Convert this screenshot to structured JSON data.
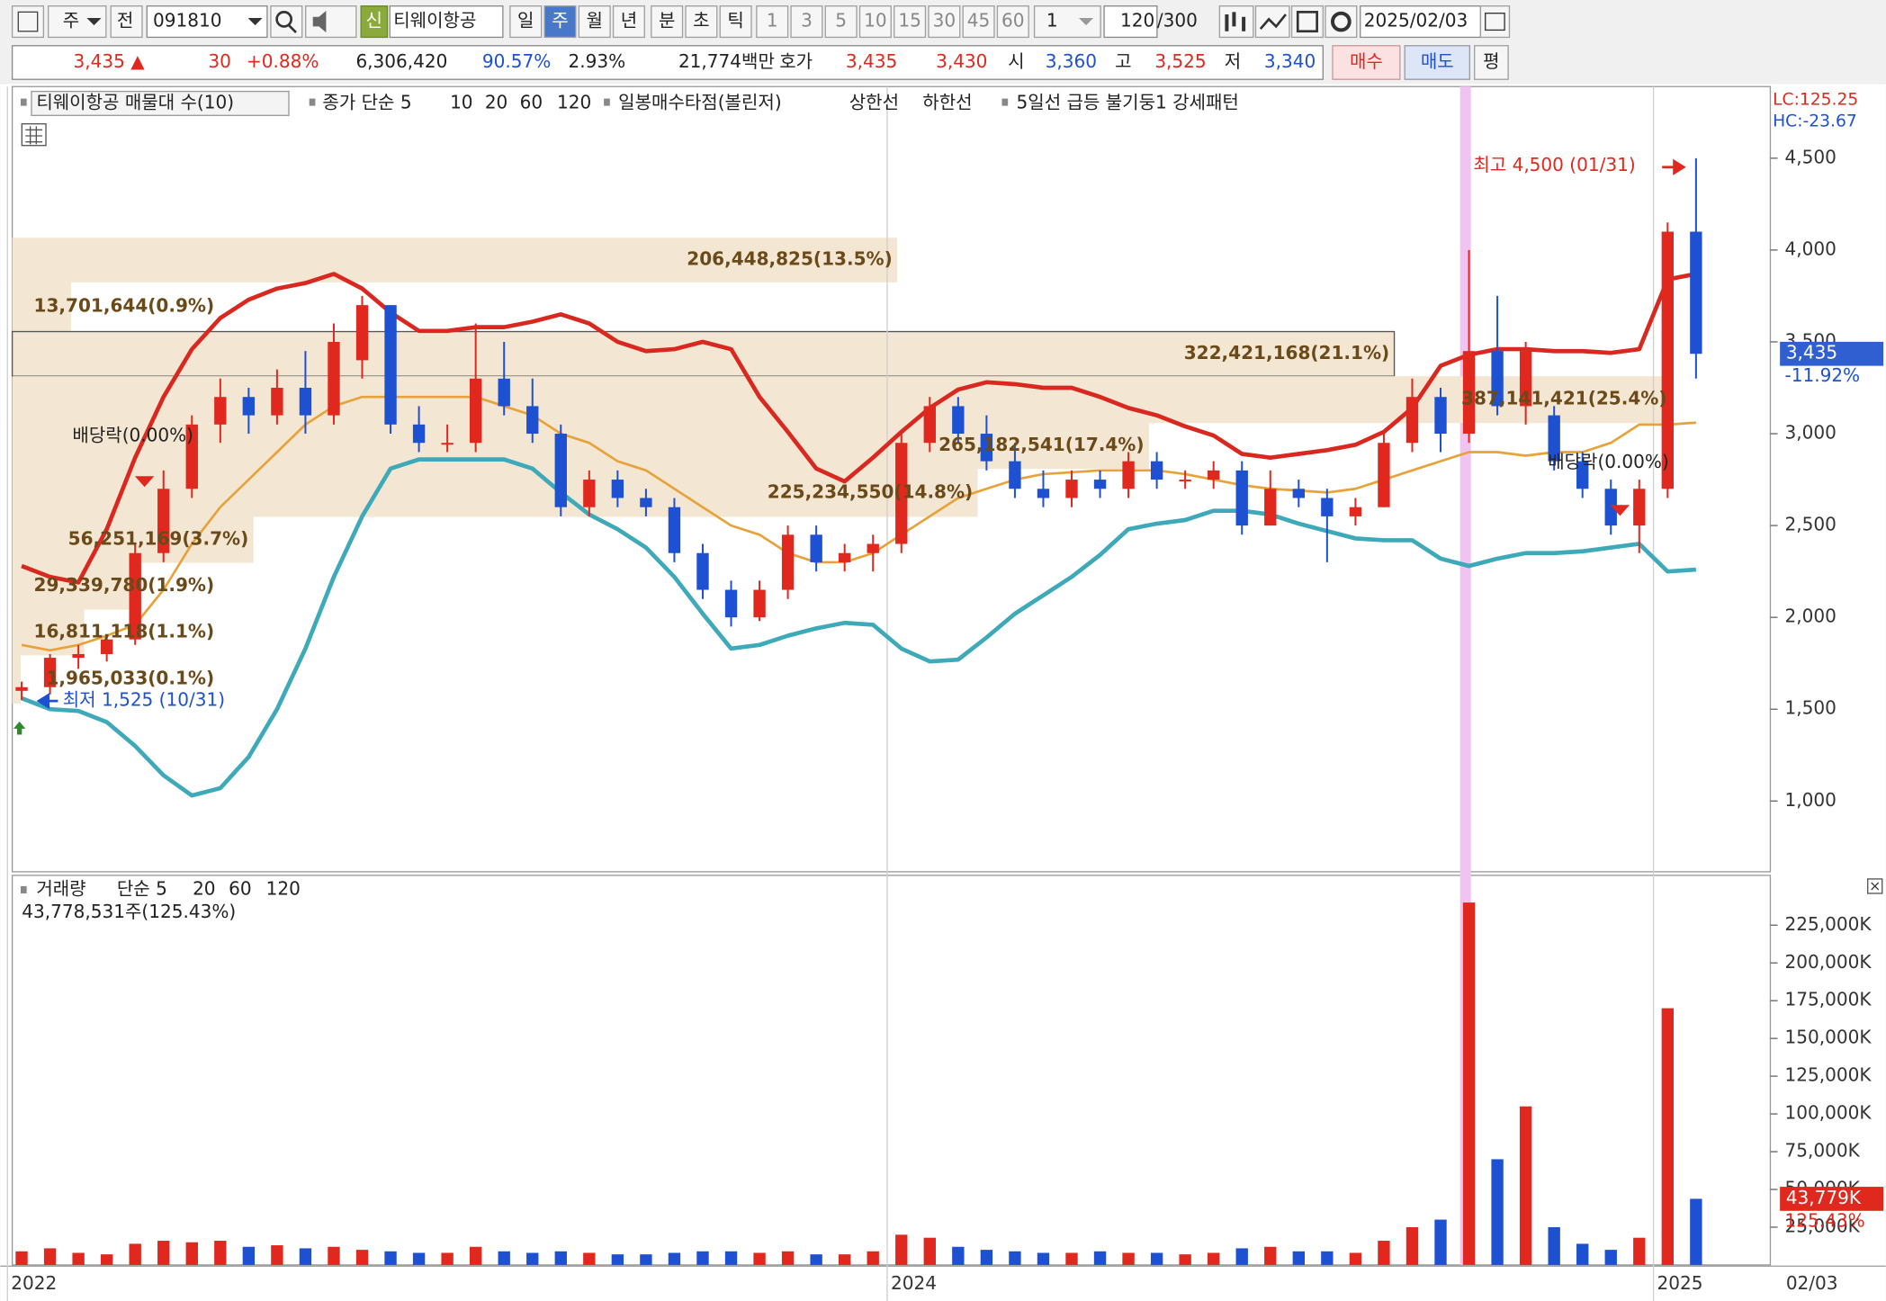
{
  "toolbar": {
    "market": "주",
    "prev": "전",
    "code": "091810",
    "credit": "신",
    "name": "티웨이항공",
    "periods": [
      "일",
      "주",
      "월",
      "년",
      "분",
      "초",
      "틱"
    ],
    "minutes": [
      "1",
      "3",
      "5",
      "10",
      "15",
      "30",
      "45",
      "60"
    ],
    "count": "1",
    "bars": "120",
    "bars_max": "/300",
    "date": "2025/02/03"
  },
  "quote": {
    "price": "3,435 ▲",
    "change": "30",
    "change_pct": "+0.88%",
    "volume": "6,306,420",
    "vol_ratio": "90.57%",
    "turnover": "2.93%",
    "amount": "21,774백만",
    "ask_label": "호가",
    "ask": "3,435",
    "bid": "3,430",
    "open_label": "시",
    "open": "3,360",
    "high_label": "고",
    "high": "3,525",
    "low_label": "저",
    "low": "3,340",
    "buy": "매수",
    "sell": "매도",
    "avg": "평"
  },
  "chart_data": [
    {
      "type": "candlestick",
      "legend": [
        {
          "text": "티웨이항공 매물대 수(10)",
          "color": "#222222"
        },
        {
          "text": "종가 단순 5",
          "color": "#d633c8"
        },
        {
          "text": "10",
          "color": "#1e50d2"
        },
        {
          "text": "20",
          "color": "#e8a23a"
        },
        {
          "text": "60",
          "color": "#2f9a2f"
        },
        {
          "text": "120",
          "color": "#888888"
        },
        {
          "text": "일봉매수타점(볼린저)",
          "color": "#2f8a2f"
        },
        {
          "text": "상한선",
          "color": "#e0281e"
        },
        {
          "text": "하한선",
          "color": "#3ea9b8"
        },
        {
          "text": "5일선 급등 불기둥1 강세패턴",
          "color": "#333333"
        }
      ],
      "corner_labels": [
        "LC:125.25",
        "HC:-23.67"
      ],
      "categories": [
        "2022",
        null,
        null,
        null,
        null,
        null,
        null,
        null,
        null,
        null,
        null,
        null,
        null,
        null,
        null,
        null,
        null,
        null,
        null,
        null,
        null,
        null,
        null,
        null,
        null,
        null,
        null,
        null,
        null,
        null,
        null,
        "2024",
        null,
        null,
        null,
        null,
        null,
        null,
        null,
        null,
        null,
        null,
        null,
        null,
        null,
        null,
        null,
        null,
        null,
        null,
        null,
        null,
        null,
        null,
        null,
        null,
        null,
        null,
        "2025",
        null
      ],
      "open": [
        1600,
        1620,
        1780,
        1800,
        1880,
        2350,
        2700,
        3050,
        3200,
        3100,
        3250,
        3100,
        3400,
        3700,
        3050,
        2950,
        2950,
        3300,
        3150,
        3000,
        2600,
        2750,
        2650,
        2600,
        2350,
        2150,
        2000,
        2150,
        2450,
        2300,
        2350,
        2400,
        2950,
        3150,
        3000,
        2850,
        2700,
        2650,
        2750,
        2700,
        2850,
        2750,
        2750,
        2800,
        2500,
        2700,
        2650,
        2550,
        2600,
        2950,
        3200,
        3000,
        3450,
        3150,
        3100,
        2850,
        2700,
        2500,
        2700,
        4100
      ],
      "high": [
        1650,
        1800,
        1850,
        1900,
        2400,
        2800,
        3100,
        3300,
        3250,
        3350,
        3450,
        3600,
        3750,
        3700,
        3150,
        3050,
        3600,
        3500,
        3300,
        3050,
        2800,
        2800,
        2700,
        2650,
        2400,
        2200,
        2200,
        2500,
        2500,
        2400,
        2450,
        3000,
        3200,
        3200,
        3100,
        2950,
        2800,
        2800,
        2800,
        2900,
        2900,
        2800,
        2850,
        2850,
        2800,
        2750,
        2700,
        2650,
        3000,
        3300,
        3250,
        4000,
        3750,
        3500,
        3150,
        2900,
        2750,
        2750,
        4150,
        4500
      ],
      "low": [
        1550,
        1580,
        1720,
        1760,
        1850,
        2300,
        2650,
        2950,
        3000,
        3050,
        3000,
        3050,
        3300,
        3000,
        2900,
        2900,
        2900,
        3100,
        2950,
        2550,
        2550,
        2600,
        2550,
        2300,
        2100,
        1950,
        1980,
        2100,
        2250,
        2250,
        2250,
        2350,
        2900,
        2950,
        2800,
        2650,
        2600,
        2600,
        2650,
        2650,
        2700,
        2700,
        2700,
        2450,
        2500,
        2600,
        2300,
        2500,
        2600,
        2900,
        2900,
        2950,
        3100,
        3050,
        2800,
        2650,
        2450,
        2350,
        2650,
        3300
      ],
      "close": [
        1620,
        1780,
        1800,
        1880,
        2350,
        2700,
        3050,
        3200,
        3100,
        3250,
        3100,
        3500,
        3700,
        3050,
        2950,
        2950,
        3300,
        3150,
        3000,
        2600,
        2750,
        2650,
        2600,
        2350,
        2150,
        2000,
        2150,
        2450,
        2300,
        2350,
        2400,
        2950,
        3150,
        3000,
        2850,
        2700,
        2650,
        2750,
        2700,
        2850,
        2750,
        2750,
        2800,
        2500,
        2700,
        2650,
        2550,
        2600,
        2950,
        3200,
        3000,
        3450,
        3150,
        3450,
        2850,
        2700,
        2500,
        2700,
        4100,
        3435
      ],
      "up_color": "#e0281e",
      "down_color": "#1e50d2",
      "lines": [
        {
          "color": "#d8281f",
          "width": 3.5,
          "values": [
            2280,
            2220,
            2190,
            2480,
            2870,
            3200,
            3460,
            3630,
            3730,
            3790,
            3820,
            3870,
            3790,
            3660,
            3560,
            3560,
            3580,
            3580,
            3610,
            3650,
            3600,
            3500,
            3450,
            3460,
            3500,
            3460,
            3200,
            3010,
            2810,
            2740,
            2870,
            3010,
            3140,
            3240,
            3280,
            3270,
            3250,
            3250,
            3200,
            3140,
            3100,
            3040,
            2990,
            2890,
            2870,
            2890,
            2910,
            2940,
            3010,
            3140,
            3370,
            3430,
            3460,
            3460,
            3450,
            3450,
            3440,
            3460,
            3840,
            3870
          ]
        },
        {
          "color": "#3ea9b8",
          "width": 3.5,
          "values": [
            1560,
            1500,
            1490,
            1430,
            1300,
            1140,
            1030,
            1070,
            1240,
            1500,
            1830,
            2220,
            2550,
            2810,
            2860,
            2860,
            2860,
            2860,
            2810,
            2680,
            2560,
            2480,
            2380,
            2220,
            2020,
            1830,
            1850,
            1900,
            1940,
            1970,
            1960,
            1830,
            1760,
            1770,
            1890,
            2020,
            2120,
            2220,
            2340,
            2480,
            2510,
            2530,
            2580,
            2580,
            2560,
            2510,
            2470,
            2430,
            2420,
            2420,
            2320,
            2280,
            2320,
            2350,
            2350,
            2360,
            2380,
            2400,
            2250,
            2260
          ]
        },
        {
          "color": "#e8a23a",
          "width": 2,
          "values": [
            1850,
            1820,
            1850,
            1900,
            1960,
            2150,
            2400,
            2600,
            2750,
            2900,
            3050,
            3150,
            3200,
            3200,
            3200,
            3200,
            3200,
            3150,
            3100,
            3000,
            2950,
            2850,
            2800,
            2700,
            2600,
            2500,
            2450,
            2350,
            2300,
            2300,
            2350,
            2450,
            2550,
            2650,
            2700,
            2750,
            2780,
            2790,
            2800,
            2800,
            2800,
            2780,
            2750,
            2720,
            2700,
            2690,
            2680,
            2700,
            2750,
            2800,
            2850,
            2900,
            2900,
            2880,
            2900,
            2900,
            2950,
            3050,
            3050,
            3060
          ]
        }
      ],
      "ylim": [
        615,
        4890
      ],
      "yticks": [
        {
          "value": 1000,
          "label": "1,000"
        },
        {
          "value": 1500,
          "label": "1,500"
        },
        {
          "value": 2000,
          "label": "2,000"
        },
        {
          "value": 2500,
          "label": "2,500"
        },
        {
          "value": 3000,
          "label": "3,000"
        },
        {
          "value": 3500,
          "label": "3,500"
        },
        {
          "value": 4000,
          "label": "4,000"
        },
        {
          "value": 4500,
          "label": "4,500"
        }
      ],
      "volume_profile": [
        {
          "label": "206,448,825(13.5%)",
          "value": 206448825,
          "range": [
            3824,
            4067
          ]
        },
        {
          "label": "13,701,644(0.9%)",
          "value": 13701644,
          "range": [
            3556,
            3824
          ]
        },
        {
          "label": "322,421,168(21.1%)",
          "value": 322421168,
          "range": [
            3313,
            3556
          ]
        },
        {
          "label": "387,141,421(25.4%)",
          "value": 387141421,
          "range": [
            3058,
            3313
          ]
        },
        {
          "label": "265,182,541(17.4%)",
          "value": 265182541,
          "range": [
            2809,
            3058
          ]
        },
        {
          "label": "225,234,550(14.8%)",
          "value": 225234550,
          "range": [
            2547,
            2809
          ]
        },
        {
          "label": "56,251,169(3.7%)",
          "value": 56251169,
          "range": [
            2297,
            2547
          ]
        },
        {
          "label": "29,339,780(1.9%)",
          "value": 29339780,
          "range": [
            2042,
            2297
          ]
        },
        {
          "label": "16,811,118(1.1%)",
          "value": 16811118,
          "range": [
            1793,
            2042
          ]
        },
        {
          "label": "1,965,033(0.1%)",
          "value": 1965033,
          "range": [
            1531,
            1793
          ]
        }
      ],
      "annotations": [
        {
          "text": "배당락(0.00%)"
        },
        {
          "text": "배당락(0.00%)"
        },
        {
          "text": "최고 4,500 (01/31)"
        },
        {
          "text": "최저 1,525 (10/31)"
        }
      ],
      "last_price": {
        "value": 3435,
        "label": "3,435"
      },
      "last_change": "-11.92%",
      "x_end_label": "02/03"
    },
    {
      "type": "bar",
      "legend": [
        {
          "text": "거래량",
          "color": "#3ea9b8"
        },
        {
          "text": "단순 5",
          "color": "#d633c8"
        },
        {
          "text": "20",
          "color": "#e8a23a"
        },
        {
          "text": "60",
          "color": "#2f9a2f"
        },
        {
          "text": "120",
          "color": "#888888"
        }
      ],
      "subtitle": "43,778,531주(125.43%)",
      "values": [
        9000,
        11000,
        8000,
        7000,
        14000,
        16000,
        15000,
        16000,
        12000,
        13000,
        11000,
        12000,
        10000,
        9000,
        8000,
        8000,
        12000,
        9000,
        8000,
        9000,
        8000,
        7000,
        7000,
        8000,
        9000,
        9000,
        8000,
        9000,
        7000,
        7000,
        9000,
        20000,
        18000,
        12000,
        10000,
        9000,
        8000,
        8000,
        9000,
        8000,
        8000,
        7000,
        8000,
        11000,
        12000,
        9000,
        9000,
        8000,
        16000,
        25000,
        30000,
        240000,
        70000,
        105000,
        25000,
        14000,
        10000,
        18000,
        170000,
        43779
      ],
      "ylim": [
        0,
        258000
      ],
      "yticks": [
        {
          "value": 25000,
          "label": "25,000K"
        },
        {
          "value": 50000,
          "label": "50,000K"
        },
        {
          "value": 75000,
          "label": "75,000K"
        },
        {
          "value": 100000,
          "label": "100,000K"
        },
        {
          "value": 125000,
          "label": "125,000K"
        },
        {
          "value": 150000,
          "label": "150,000K"
        },
        {
          "value": 175000,
          "label": "175,000K"
        },
        {
          "value": 200000,
          "label": "200,000K"
        },
        {
          "value": 225000,
          "label": "225,000K"
        }
      ],
      "last": {
        "value": 43779,
        "label": "43,779K"
      },
      "last_pct": "125.43%"
    }
  ]
}
